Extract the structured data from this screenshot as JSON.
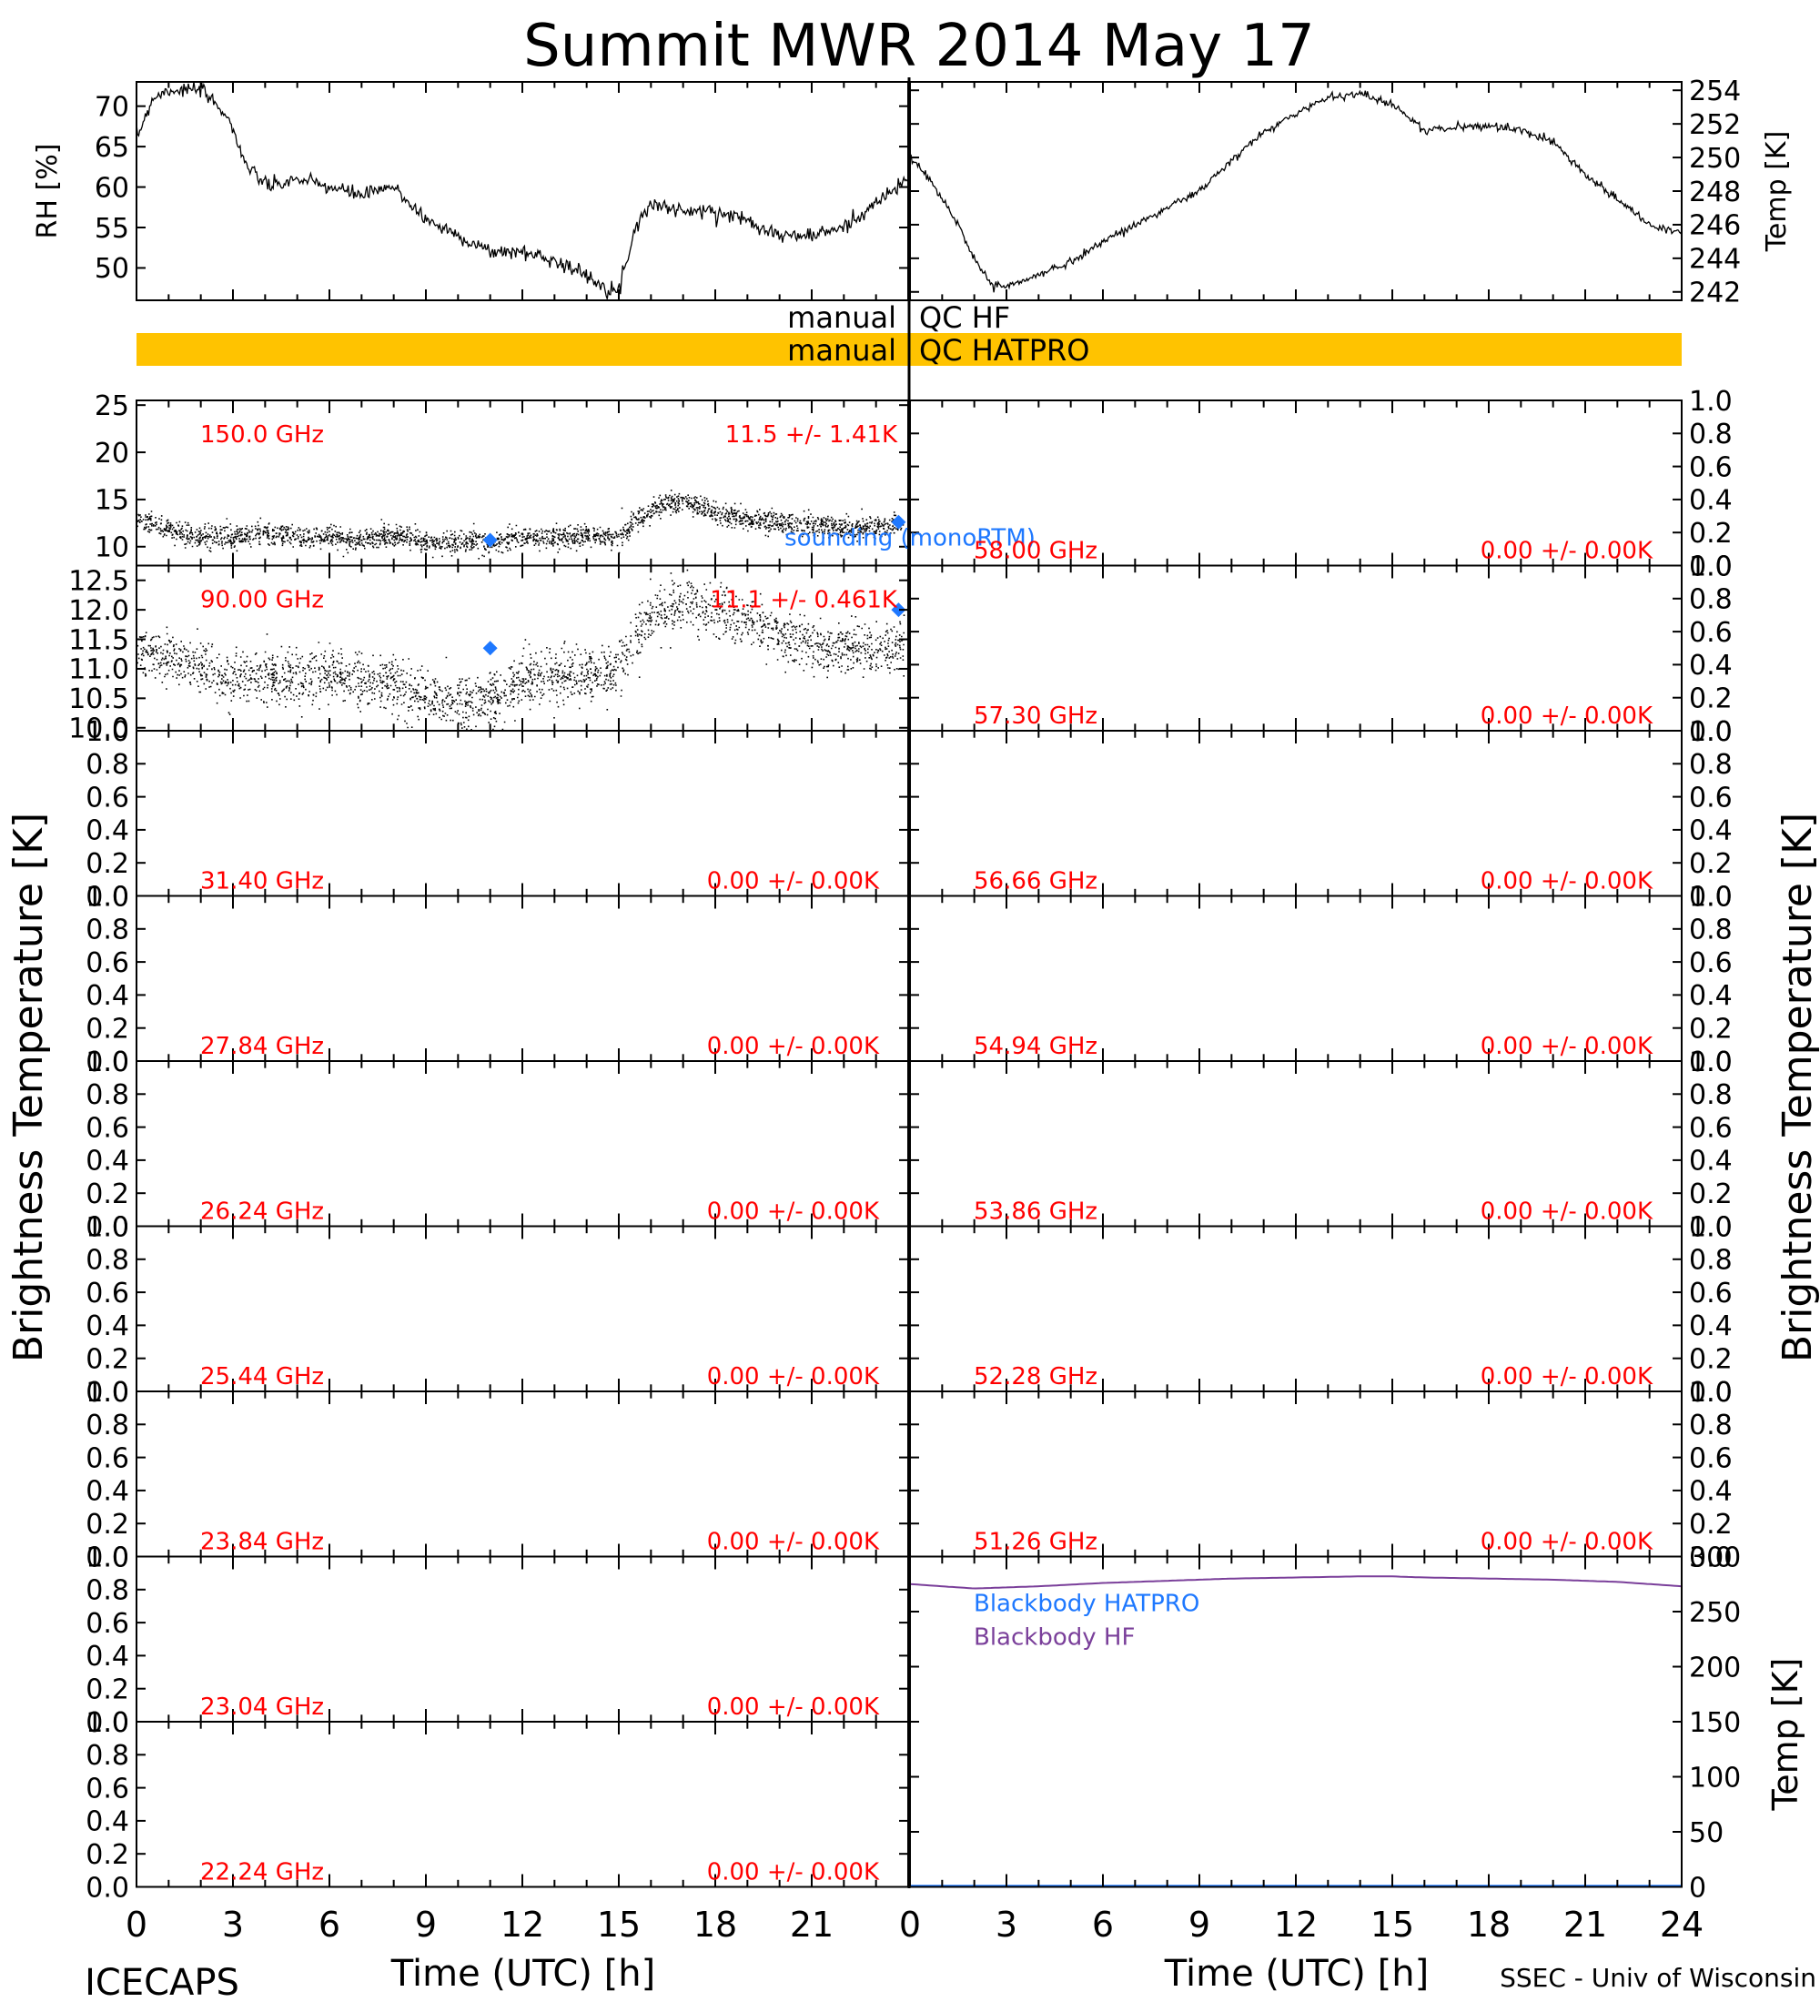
{
  "title": "Summit MWR 2014 May 17",
  "footer": {
    "left": "ICECAPS",
    "right": "SSEC - Univ of Wisconsin"
  },
  "colors": {
    "axis": "#000000",
    "label_red": "#ff0000",
    "label_blue": "#1e78ff",
    "qc_bar": "#ffc300",
    "blackbody_hf": "#7a3f9a",
    "blackbody_hatpro": "#1e78ff"
  },
  "axis_labels": {
    "left_brightness": "Brightness Temperature [K]",
    "right_brightness": "Brightness Temperature [K]",
    "time_left": "Time (UTC) [h]",
    "time_right": "Time (UTC) [h]",
    "rh": "RH [%]",
    "temp": "Temp [K]",
    "bb_temp": "Temp [K]"
  },
  "qc": {
    "hf_left": "manual",
    "hf_right": "QC HF",
    "hatpro_left": "manual",
    "hatpro_right": "QC HATPRO"
  },
  "chart_data": [
    {
      "type": "line",
      "ylabel": "RH [%]",
      "xlim": [
        0,
        24
      ],
      "ylim": [
        46,
        73
      ],
      "yticks": [
        "50",
        "55",
        "60",
        "65",
        "70"
      ],
      "x": [
        0,
        0.5,
        1,
        2,
        2.8,
        3.5,
        4.2,
        5,
        6,
        7,
        8,
        9,
        10,
        11,
        12,
        13,
        14,
        15,
        15.5,
        16,
        17,
        18,
        19,
        20,
        21,
        22,
        23,
        24
      ],
      "values": [
        66,
        71,
        72,
        72,
        69,
        62,
        60,
        61,
        60,
        59,
        60,
        56,
        54,
        52,
        52,
        51,
        49,
        47,
        55,
        58,
        57,
        57,
        56,
        54,
        54,
        55,
        58,
        61
      ]
    },
    {
      "type": "line",
      "ylabel": "Temp [K]",
      "xlim": [
        0,
        24
      ],
      "ylim": [
        241.5,
        254.5
      ],
      "yticks": [
        "242",
        "244",
        "246",
        "248",
        "250",
        "252",
        "254"
      ],
      "x": [
        0,
        0.5,
        1,
        1.5,
        2,
        2.5,
        3,
        4,
        5,
        6,
        7,
        8,
        9,
        10,
        11,
        12,
        13,
        14,
        15,
        16,
        17,
        18,
        19,
        20,
        21,
        22,
        23,
        24
      ],
      "values": [
        250,
        249,
        247.5,
        246,
        244,
        242.5,
        242.3,
        243,
        243.8,
        245,
        246,
        247,
        248,
        249.8,
        251.5,
        252.6,
        253.6,
        253.8,
        253.2,
        251.6,
        251.8,
        251.9,
        251.6,
        251,
        249,
        247.5,
        246,
        245.5
      ]
    },
    {
      "type": "scatter",
      "channel": "150.0 GHz",
      "stat": "11.5 +/- 1.41K",
      "ylim": [
        8,
        25.5
      ],
      "yticks": [
        "10",
        "15",
        "20",
        "25"
      ],
      "x": [
        0,
        1,
        2,
        3,
        4,
        5,
        6,
        7,
        8,
        9,
        10,
        11,
        12,
        13,
        14,
        15,
        15.5,
        16,
        16.5,
        17,
        17.5,
        18,
        19,
        20,
        21,
        22,
        23,
        23.7
      ],
      "values": [
        13,
        11.8,
        11,
        11,
        11.5,
        11,
        11,
        10.8,
        11.2,
        10.5,
        10.5,
        10.4,
        11,
        11,
        11.2,
        11,
        12.5,
        14,
        14.5,
        14.5,
        14.2,
        13.5,
        12.8,
        12.5,
        12.2,
        12,
        12,
        12.5
      ],
      "sounding": [
        [
          11,
          10.7
        ],
        [
          23.7,
          12.6
        ]
      ],
      "sounding_label": "sounding (monoRTM)"
    },
    {
      "type": "scatter",
      "channel": "90.00 GHz",
      "stat": "11.1 +/- 0.461K",
      "ylim": [
        9.95,
        12.75
      ],
      "yticks": [
        "10.0",
        "10.5",
        "11.0",
        "11.5",
        "12.0",
        "12.5"
      ],
      "x": [
        0,
        1,
        2,
        3,
        4,
        5,
        6,
        7,
        8,
        9,
        10,
        11,
        12,
        13,
        14,
        15,
        15.5,
        16,
        17,
        18,
        19,
        20,
        21,
        22,
        23,
        23.7
      ],
      "values": [
        11.3,
        11.2,
        11,
        10.8,
        10.9,
        10.8,
        10.9,
        10.8,
        10.7,
        10.5,
        10.4,
        10.5,
        10.8,
        10.9,
        10.9,
        11.0,
        11.5,
        11.9,
        12.1,
        12.0,
        11.8,
        11.6,
        11.4,
        11.4,
        11.3,
        11.4
      ],
      "sounding": [
        [
          11,
          11.35
        ],
        [
          23.7,
          12.0
        ]
      ]
    },
    {
      "type": "scatter",
      "channel": "31.40 GHz",
      "stat": "0.00 +/- 0.00K",
      "ylim": [
        0,
        1
      ],
      "yticks": [
        "0.0",
        "0.2",
        "0.4",
        "0.6",
        "0.8",
        "1.0"
      ],
      "values": []
    },
    {
      "type": "scatter",
      "channel": "27.84 GHz",
      "stat": "0.00 +/- 0.00K",
      "ylim": [
        0,
        1
      ],
      "yticks": [
        "0.0",
        "0.2",
        "0.4",
        "0.6",
        "0.8",
        "1.0"
      ],
      "values": []
    },
    {
      "type": "scatter",
      "channel": "26.24 GHz",
      "stat": "0.00 +/- 0.00K",
      "ylim": [
        0,
        1
      ],
      "yticks": [
        "0.0",
        "0.2",
        "0.4",
        "0.6",
        "0.8",
        "1.0"
      ],
      "values": []
    },
    {
      "type": "scatter",
      "channel": "25.44 GHz",
      "stat": "0.00 +/- 0.00K",
      "ylim": [
        0,
        1
      ],
      "yticks": [
        "0.0",
        "0.2",
        "0.4",
        "0.6",
        "0.8",
        "1.0"
      ],
      "values": []
    },
    {
      "type": "scatter",
      "channel": "23.84 GHz",
      "stat": "0.00 +/- 0.00K",
      "ylim": [
        0,
        1
      ],
      "yticks": [
        "0.0",
        "0.2",
        "0.4",
        "0.6",
        "0.8",
        "1.0"
      ],
      "values": []
    },
    {
      "type": "scatter",
      "channel": "23.04 GHz",
      "stat": "0.00 +/- 0.00K",
      "ylim": [
        0,
        1
      ],
      "yticks": [
        "0.0",
        "0.2",
        "0.4",
        "0.6",
        "0.8",
        "1.0"
      ],
      "values": []
    },
    {
      "type": "scatter",
      "channel": "22.24 GHz",
      "stat": "0.00 +/- 0.00K",
      "ylim": [
        0,
        1
      ],
      "yticks": [
        "0.0",
        "0.2",
        "0.4",
        "0.6",
        "0.8",
        "1.0"
      ],
      "values": []
    },
    {
      "type": "scatter",
      "channel": "58.00 GHz",
      "stat": "0.00 +/- 0.00K",
      "ylim": [
        0,
        1
      ],
      "yticks": [
        "0.0",
        "0.2",
        "0.4",
        "0.6",
        "0.8",
        "1.0"
      ],
      "values": []
    },
    {
      "type": "scatter",
      "channel": "57.30 GHz",
      "stat": "0.00 +/- 0.00K",
      "ylim": [
        0,
        1
      ],
      "yticks": [
        "0.0",
        "0.2",
        "0.4",
        "0.6",
        "0.8",
        "1.0"
      ],
      "values": []
    },
    {
      "type": "scatter",
      "channel": "56.66 GHz",
      "stat": "0.00 +/- 0.00K",
      "ylim": [
        0,
        1
      ],
      "yticks": [
        "0.0",
        "0.2",
        "0.4",
        "0.6",
        "0.8",
        "1.0"
      ],
      "values": []
    },
    {
      "type": "scatter",
      "channel": "54.94 GHz",
      "stat": "0.00 +/- 0.00K",
      "ylim": [
        0,
        1
      ],
      "yticks": [
        "0.0",
        "0.2",
        "0.4",
        "0.6",
        "0.8",
        "1.0"
      ],
      "values": []
    },
    {
      "type": "scatter",
      "channel": "53.86 GHz",
      "stat": "0.00 +/- 0.00K",
      "ylim": [
        0,
        1
      ],
      "yticks": [
        "0.0",
        "0.2",
        "0.4",
        "0.6",
        "0.8",
        "1.0"
      ],
      "values": []
    },
    {
      "type": "scatter",
      "channel": "52.28 GHz",
      "stat": "0.00 +/- 0.00K",
      "ylim": [
        0,
        1
      ],
      "yticks": [
        "0.0",
        "0.2",
        "0.4",
        "0.6",
        "0.8",
        "1.0"
      ],
      "values": []
    },
    {
      "type": "scatter",
      "channel": "51.26 GHz",
      "stat": "0.00 +/- 0.00K",
      "ylim": [
        0,
        1
      ],
      "yticks": [
        "0.0",
        "0.2",
        "0.4",
        "0.6",
        "0.8",
        "1.0"
      ],
      "values": []
    },
    {
      "type": "line",
      "ylabel": "Temp [K]",
      "ylim": [
        0,
        300
      ],
      "yticks": [
        "0",
        "50",
        "100",
        "150",
        "200",
        "250",
        "300"
      ],
      "series": [
        {
          "name": "Blackbody HATPRO",
          "x": [
            0,
            24
          ],
          "values": [
            1,
            1
          ]
        },
        {
          "name": "Blackbody HF",
          "x": [
            0,
            2,
            4,
            6,
            8,
            10,
            12,
            14,
            15,
            16,
            18,
            20,
            22,
            24
          ],
          "values": [
            275,
            271,
            273,
            276,
            278,
            280,
            281,
            282,
            282,
            281,
            280,
            279,
            277,
            273
          ]
        }
      ]
    }
  ],
  "x_ticks": [
    "0",
    "3",
    "6",
    "9",
    "12",
    "15",
    "18",
    "21",
    "24"
  ],
  "x_ticks_left": [
    "0",
    "3",
    "6",
    "9",
    "12",
    "15",
    "18",
    "21"
  ],
  "x_ticks_right": [
    "0",
    "3",
    "6",
    "9",
    "12",
    "15",
    "18",
    "21",
    "24"
  ]
}
